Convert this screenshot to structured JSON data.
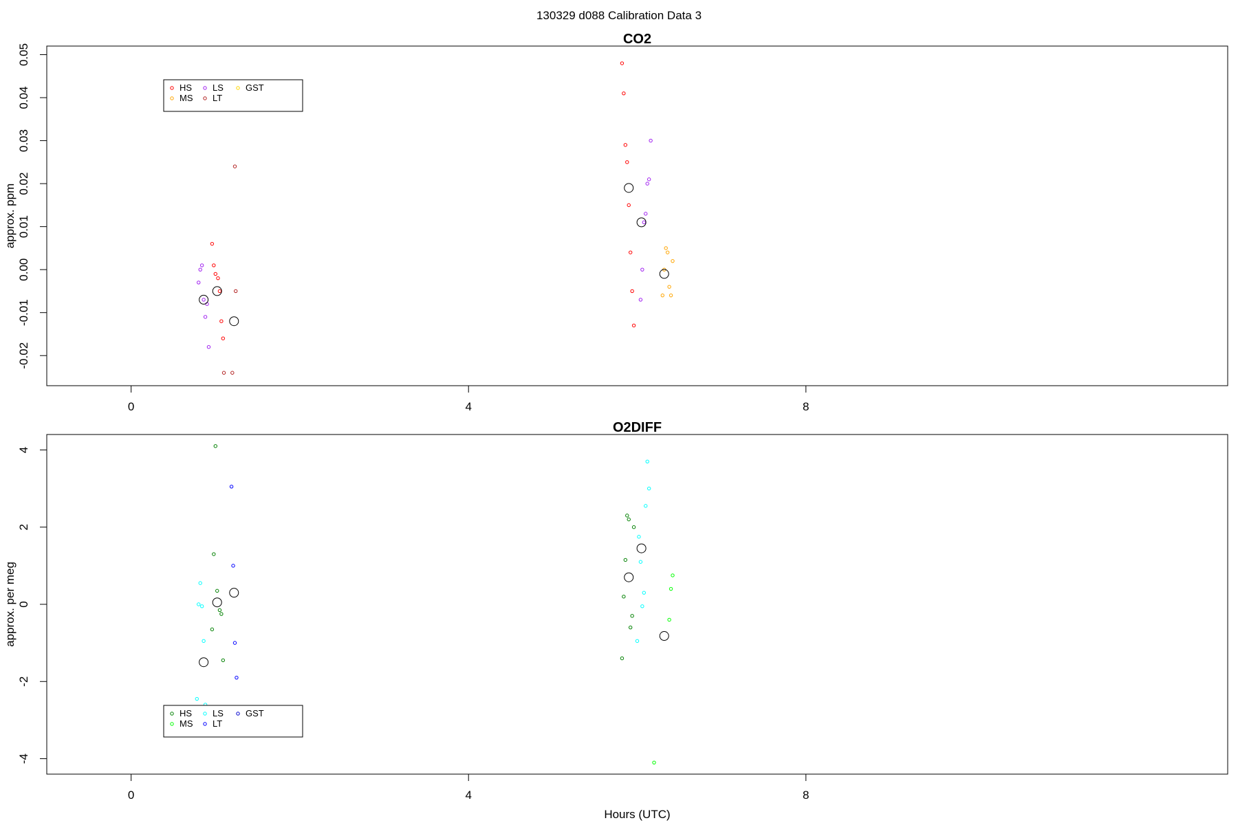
{
  "suptitle": "130329   d088   Calibration Data 3",
  "chart_data": [
    {
      "type": "scatter",
      "title": "CO2",
      "xlabel": "",
      "ylabel": "approx. ppm",
      "xlim": [
        -1,
        13
      ],
      "ylim": [
        -0.027,
        0.052
      ],
      "xticks": [
        0,
        4,
        8
      ],
      "yticks": [
        -0.02,
        -0.01,
        0.0,
        0.01,
        0.02,
        0.03,
        0.04,
        0.05
      ],
      "ytick_labels": [
        "-0.02",
        "-0.01",
        "0.00",
        "0.01",
        "0.02",
        "0.03",
        "0.04",
        "0.05"
      ],
      "legend": {
        "placement": "top-left",
        "entries": [
          {
            "label": "HS",
            "color": "#ff0000"
          },
          {
            "label": "MS",
            "color": "#ffa500"
          },
          {
            "label": "LS",
            "color": "#a020f0"
          },
          {
            "label": "LT",
            "color": "#b22222"
          },
          {
            "label": "GST",
            "color": "#ffd700"
          }
        ]
      },
      "series": [
        {
          "label": "HS",
          "color": "#ff0000",
          "x": [
            0.96,
            0.98,
            1.0,
            1.03,
            1.05,
            1.07,
            1.09,
            5.82,
            5.84,
            5.86,
            5.88,
            5.9,
            5.92,
            5.94,
            5.96
          ],
          "y": [
            0.006,
            0.001,
            -0.001,
            -0.002,
            -0.005,
            -0.012,
            -0.016,
            0.048,
            0.041,
            0.029,
            0.025,
            0.015,
            0.004,
            -0.005,
            -0.013
          ]
        },
        {
          "label": "LS",
          "color": "#a020f0",
          "x": [
            0.8,
            0.82,
            0.84,
            0.86,
            0.88,
            0.9,
            0.92,
            6.04,
            6.06,
            6.08,
            6.1,
            6.12,
            6.14,
            6.16
          ],
          "y": [
            -0.003,
            0.0,
            0.001,
            -0.007,
            -0.011,
            -0.008,
            -0.018,
            -0.007,
            0.0,
            0.011,
            0.013,
            0.02,
            0.021,
            0.03
          ]
        },
        {
          "label": "MS",
          "color": "#ffa500",
          "x": [
            6.3,
            6.32,
            6.34,
            6.36,
            6.38,
            6.4,
            6.42
          ],
          "y": [
            -0.006,
            0.0,
            0.005,
            0.004,
            -0.004,
            -0.006,
            0.002
          ]
        },
        {
          "label": "LT",
          "color": "#b22222",
          "x": [
            1.1,
            1.2,
            1.23,
            1.24
          ],
          "y": [
            -0.024,
            -0.024,
            0.024,
            -0.005
          ]
        }
      ],
      "means": {
        "x": [
          0.86,
          1.02,
          1.22,
          5.9,
          6.05,
          6.32
        ],
        "y": [
          -0.007,
          -0.005,
          -0.012,
          0.019,
          0.011,
          -0.001
        ]
      }
    },
    {
      "type": "scatter",
      "title": "O2DIFF",
      "xlabel": "Hours (UTC)",
      "ylabel": "approx. per meg",
      "xlim": [
        -1,
        13
      ],
      "ylim": [
        -4.4,
        4.4
      ],
      "xticks": [
        0,
        4,
        8
      ],
      "yticks": [
        -4,
        -2,
        0,
        2,
        4
      ],
      "ytick_labels": [
        "-4",
        "-2",
        "0",
        "2",
        "4"
      ],
      "legend": {
        "placement": "bottom-left",
        "entries": [
          {
            "label": "HS",
            "color": "#008000"
          },
          {
            "label": "MS",
            "color": "#00ff00"
          },
          {
            "label": "LS",
            "color": "#00ffff"
          },
          {
            "label": "LT",
            "color": "#0000ff"
          },
          {
            "label": "GST",
            "color": "#0000cd"
          }
        ]
      },
      "series": [
        {
          "label": "HS",
          "color": "#008000",
          "x": [
            0.96,
            0.98,
            1.0,
            1.02,
            1.05,
            1.07,
            1.09,
            5.82,
            5.84,
            5.86,
            5.88,
            5.9,
            5.92,
            5.94,
            5.96
          ],
          "y": [
            -0.65,
            1.3,
            4.1,
            0.35,
            -0.15,
            -0.25,
            -1.45,
            -1.4,
            0.2,
            1.15,
            2.3,
            2.2,
            -0.6,
            -0.3,
            2.0
          ]
        },
        {
          "label": "LS",
          "color": "#00ffff",
          "x": [
            0.78,
            0.8,
            0.82,
            0.84,
            0.86,
            0.88,
            6.0,
            6.02,
            6.04,
            6.06,
            6.08,
            6.1,
            6.12,
            6.14
          ],
          "y": [
            -2.45,
            0.0,
            0.55,
            -0.05,
            -0.95,
            -2.6,
            -0.95,
            1.75,
            1.1,
            -0.05,
            0.3,
            2.55,
            3.7,
            3.0
          ]
        },
        {
          "label": "MS",
          "color": "#00ff00",
          "x": [
            6.2,
            6.38,
            6.4,
            6.42
          ],
          "y": [
            -4.1,
            -0.4,
            0.4,
            0.75
          ]
        },
        {
          "label": "LT",
          "color": "#0000ff",
          "x": [
            1.19,
            1.21,
            1.23,
            1.25
          ],
          "y": [
            3.05,
            1.0,
            -1.0,
            -1.9
          ]
        }
      ],
      "means": {
        "x": [
          0.86,
          1.02,
          1.22,
          5.9,
          6.05,
          6.32
        ],
        "y": [
          -1.5,
          0.05,
          0.3,
          0.7,
          1.45,
          -0.82
        ]
      }
    }
  ]
}
